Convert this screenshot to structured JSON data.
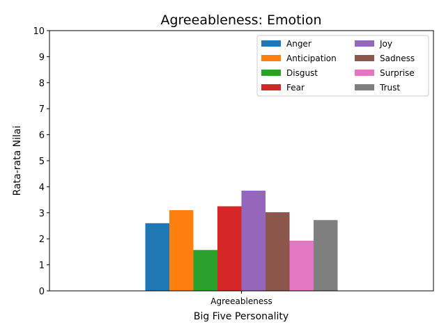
{
  "chart_data": {
    "type": "bar",
    "title": "Agreeableness: Emotion",
    "xlabel": "Big Five Personality",
    "ylabel": "Rata-rata Nilai",
    "categories": [
      "Agreeableness"
    ],
    "ylim": [
      0,
      10
    ],
    "yticks": [
      "0",
      "1",
      "2",
      "3",
      "4",
      "5",
      "6",
      "7",
      "8",
      "9",
      "10"
    ],
    "grid": false,
    "legend_position": "top-right",
    "legend_columns": 2,
    "series": [
      {
        "name": "Anger",
        "values": [
          2.6
        ],
        "color": "#1f77b4"
      },
      {
        "name": "Anticipation",
        "values": [
          3.1
        ],
        "color": "#ff7f0e"
      },
      {
        "name": "Disgust",
        "values": [
          1.57
        ],
        "color": "#2ca02c"
      },
      {
        "name": "Fear",
        "values": [
          3.25
        ],
        "color": "#d62728"
      },
      {
        "name": "Joy",
        "values": [
          3.85
        ],
        "color": "#9467bd"
      },
      {
        "name": "Sadness",
        "values": [
          3.02
        ],
        "color": "#8c564b"
      },
      {
        "name": "Surprise",
        "values": [
          1.93
        ],
        "color": "#e377c2"
      },
      {
        "name": "Trust",
        "values": [
          2.72
        ],
        "color": "#7f7f7f"
      }
    ]
  }
}
